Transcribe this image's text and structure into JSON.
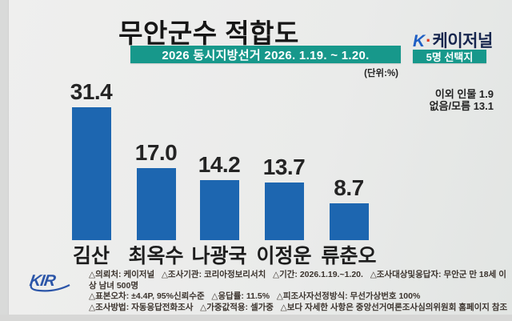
{
  "header": {
    "title": "무안군수 적합도",
    "subtitle": "2026 동시지방선거 2026. 1.19. ~ 1.20.",
    "unit_label": "(단위:%)",
    "brand": {
      "k": "K",
      "dot": "·",
      "name": "케이저널",
      "badge": "5명 선택지"
    }
  },
  "chart_data": {
    "type": "bar",
    "title": "무안군수 적합도",
    "subtitle": "2026 동시지방선거 2026. 1.19. ~ 1.20.",
    "unit": "%",
    "categories": [
      "김산",
      "최옥수",
      "나광국",
      "이정운",
      "류춘오"
    ],
    "values": [
      31.4,
      17.0,
      14.2,
      13.7,
      8.7
    ],
    "value_labels": [
      "31.4",
      "17.0",
      "14.2",
      "13.7",
      "8.7"
    ],
    "annotations": [
      "이외 인물 1.9",
      "없음/모름 13.1"
    ],
    "ylim": [
      0,
      33
    ],
    "grid": false,
    "legend_position": "none",
    "bar_color": "#1d66b0"
  },
  "side_notes": {
    "others": "이외 인물 1.9",
    "unknown": "없음/모름 13.1"
  },
  "footer": {
    "logo_text": "KIR",
    "lines": [
      "△의뢰처: 케이저널   △조사기관: 코리아정보리서치   △기간: 2026.1.19.~1.20.   △조사대상및응답자: 무안군 만 18세 이상 남녀 500명",
      "△표본오차: ±4.4P, 95%신뢰수준   △응답률: 11.5%   △피조사자선정방식: 무선가상번호 100%",
      "△조사방법: 자동응답전화조사   △가중값적용: 셀가중   △보다 자세한 사항은 중앙선거여론조사심의위원회 홈페이지 참조"
    ]
  },
  "colors": {
    "teal": "#17988b",
    "bar_blue": "#1d66b0",
    "brand_blue": "#1f5fc4",
    "brand_red": "#e03a24",
    "brand_navy": "#17264e",
    "kir_blue": "#2b55a8",
    "background": "#eaebea"
  }
}
